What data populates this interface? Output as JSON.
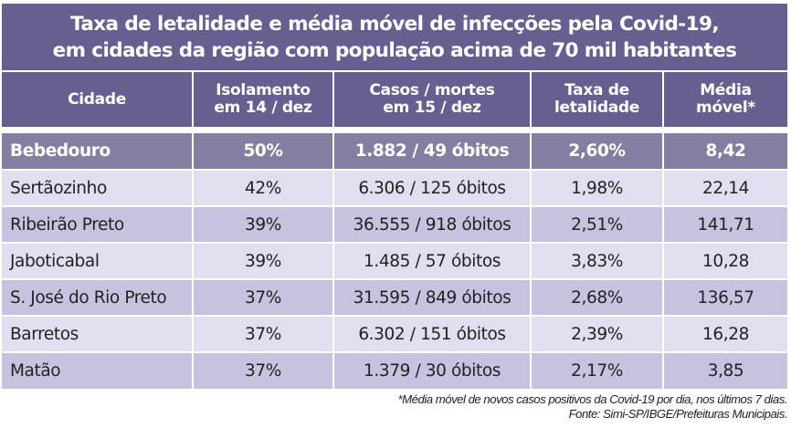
{
  "title": {
    "line1": "Taxa de letalidade e média móvel de infecções pela Covid-19,",
    "line2": "em cidades da região com população acima de 70 mil habitantes"
  },
  "table": {
    "headers": [
      {
        "line1": "Cidade",
        "line2": ""
      },
      {
        "line1": "Isolamento",
        "line2": "em 14 / dez"
      },
      {
        "line1": "Casos / mortes",
        "line2": "em 15 / dez"
      },
      {
        "line1": "Taxa de",
        "line2": "letalidade"
      },
      {
        "line1": "Média",
        "line2": "móvel*"
      }
    ],
    "rows": [
      {
        "cidade": "Bebedouro",
        "isolamento": "50%",
        "casos_mortes": "1.882 / 49 óbitos",
        "taxa": "2,60%",
        "media": "8,42"
      },
      {
        "cidade": "Sertãozinho",
        "isolamento": "42%",
        "casos_mortes": "6.306 / 125 óbitos",
        "taxa": "1,98%",
        "media": "22,14"
      },
      {
        "cidade": "Ribeirão Preto",
        "isolamento": "39%",
        "casos_mortes": "36.555 / 918 óbitos",
        "taxa": "2,51%",
        "media": "141,71"
      },
      {
        "cidade": "Jaboticabal",
        "isolamento": "39%",
        "casos_mortes": "1.485 / 57 óbitos",
        "taxa": "3,83%",
        "media": "10,28"
      },
      {
        "cidade": "S. José do Rio Preto",
        "isolamento": "37%",
        "casos_mortes": "31.595 / 849 óbitos",
        "taxa": "2,68%",
        "media": "136,57"
      },
      {
        "cidade": "Barretos",
        "isolamento": "37%",
        "casos_mortes": "6.302 / 151 óbitos",
        "taxa": "2,39%",
        "media": "16,28"
      },
      {
        "cidade": "Matão",
        "isolamento": "37%",
        "casos_mortes": "1.379 / 30 óbitos",
        "taxa": "2,17%",
        "media": "3,85"
      }
    ]
  },
  "footnote": {
    "line1": "*Média móvel de novos casos positivos da Covid-19 por dia, nos últimos 7 dias.",
    "line2": "Fonte: Simi-SP/IBGE/Prefeituras Municipais."
  },
  "colors": {
    "header_bg": "#675f90",
    "highlight_row_bg": "#827fa2",
    "light_row_bg": "#e0deef",
    "mid_row_bg": "#c6c3e1"
  }
}
